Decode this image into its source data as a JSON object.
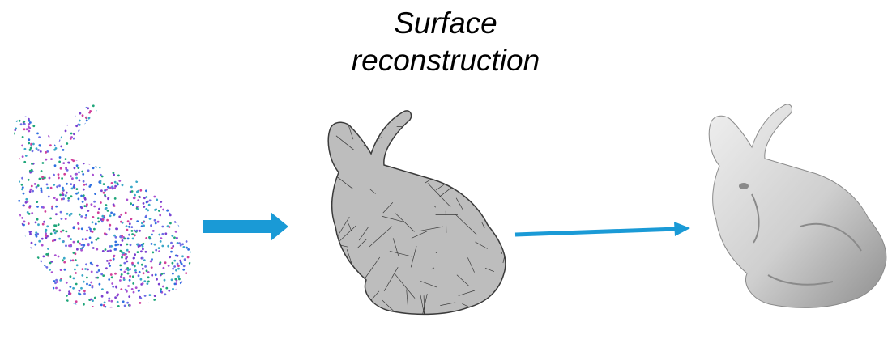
{
  "title": {
    "line1": "Surface",
    "line2": "reconstruction"
  },
  "colors": {
    "arrow": "#1a9ad6",
    "mesh_fill": "#bdbdbd",
    "mesh_edge": "#3a3a3a",
    "smooth_fill": "#d7d7d7",
    "smooth_shade": "#8a8a8a"
  },
  "stages": [
    {
      "id": "point-cloud",
      "render": "colored points"
    },
    {
      "id": "triangle-mesh",
      "render": "wireframe mesh"
    },
    {
      "id": "smooth-surface",
      "render": "shaded surface"
    }
  ]
}
